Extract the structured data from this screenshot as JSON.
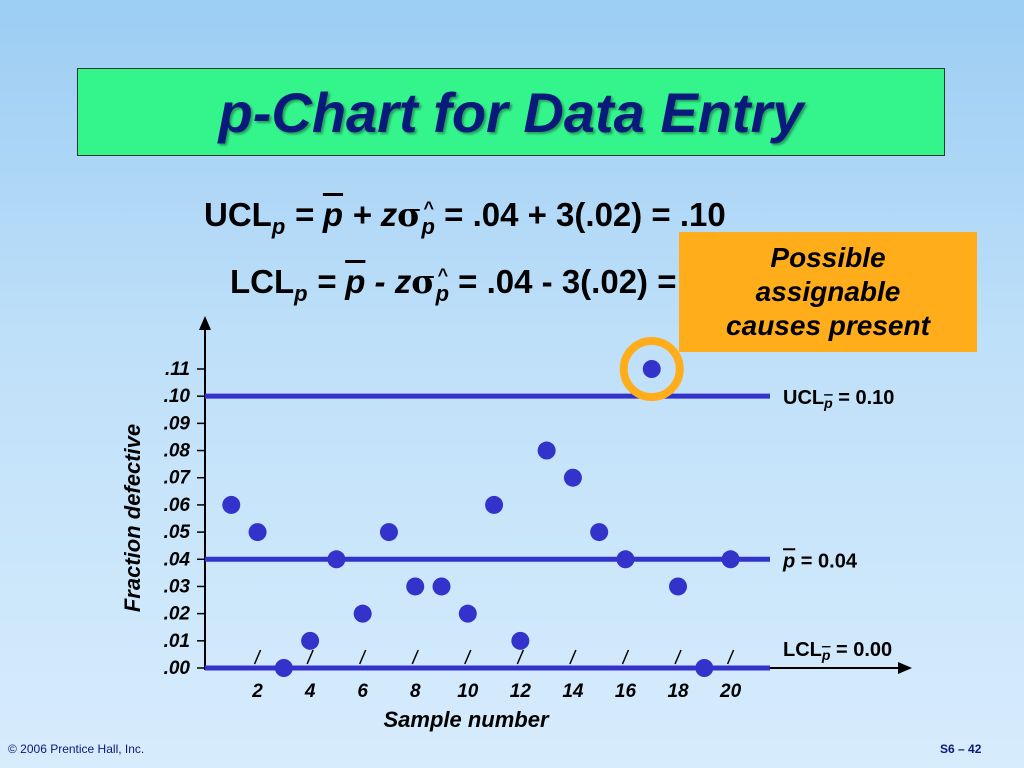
{
  "slide": {
    "title": "p-Chart for Data Entry",
    "footer_left": "© 2006 Prentice Hall, Inc.",
    "footer_right": "S6 – 42"
  },
  "formulas": {
    "ucl": {
      "name": "UCL",
      "sub": "p",
      "eq1": " = ",
      "pbar": "p",
      "op": " + ",
      "z": "z",
      "sigma": "σ",
      "phat": "p",
      "rest": " = .04 + 3(.02) = .10"
    },
    "lcl": {
      "name": "LCL",
      "sub": "p",
      "eq1": " = ",
      "pbar": "p",
      "op": " - ",
      "z": "z",
      "sigma": "σ",
      "phat": "p",
      "rest": " = .04 - 3(.02) = 0"
    }
  },
  "callout": {
    "lines": [
      "Possible",
      "assignable",
      "causes present"
    ],
    "color": "#ffad1a"
  },
  "chart_data": {
    "type": "scatter",
    "xlabel": "Sample number",
    "ylabel": "Fraction defective",
    "x": [
      1,
      2,
      3,
      4,
      5,
      6,
      7,
      8,
      9,
      10,
      11,
      12,
      13,
      14,
      15,
      16,
      17,
      18,
      19,
      20
    ],
    "y": [
      0.06,
      0.05,
      0.0,
      0.01,
      0.04,
      0.02,
      0.05,
      0.03,
      0.03,
      0.02,
      0.06,
      0.01,
      0.08,
      0.07,
      0.05,
      0.04,
      0.11,
      0.03,
      0.0,
      0.04
    ],
    "xlim": [
      0,
      21.5
    ],
    "ylim": [
      0,
      0.11
    ],
    "x_ticks": [
      "2",
      "4",
      "6",
      "8",
      "10",
      "12",
      "14",
      "16",
      "18",
      "20"
    ],
    "x_tick_values": [
      2,
      4,
      6,
      8,
      10,
      12,
      14,
      16,
      18,
      20
    ],
    "y_ticks": [
      ".00",
      ".01",
      ".02",
      ".03",
      ".04",
      ".05",
      ".06",
      ".07",
      ".08",
      ".09",
      ".10",
      ".11"
    ],
    "y_tick_values": [
      0,
      0.01,
      0.02,
      0.03,
      0.04,
      0.05,
      0.06,
      0.07,
      0.08,
      0.09,
      0.1,
      0.11
    ],
    "reference_lines": [
      {
        "name": "UCL",
        "sub": "p",
        "text": " = 0.10",
        "value": 0.1
      },
      {
        "name": "",
        "sub": "",
        "text": " =  0.04",
        "pbar": "p",
        "value": 0.04
      },
      {
        "name": "LCL",
        "sub": "p",
        "text": " = 0.00",
        "value": 0.0
      }
    ],
    "highlighted_x": 17,
    "colors": {
      "points": "#3333cc",
      "lines": "#3333cc",
      "highlight_ring": "#ffad1a",
      "axis": "#000000"
    }
  }
}
